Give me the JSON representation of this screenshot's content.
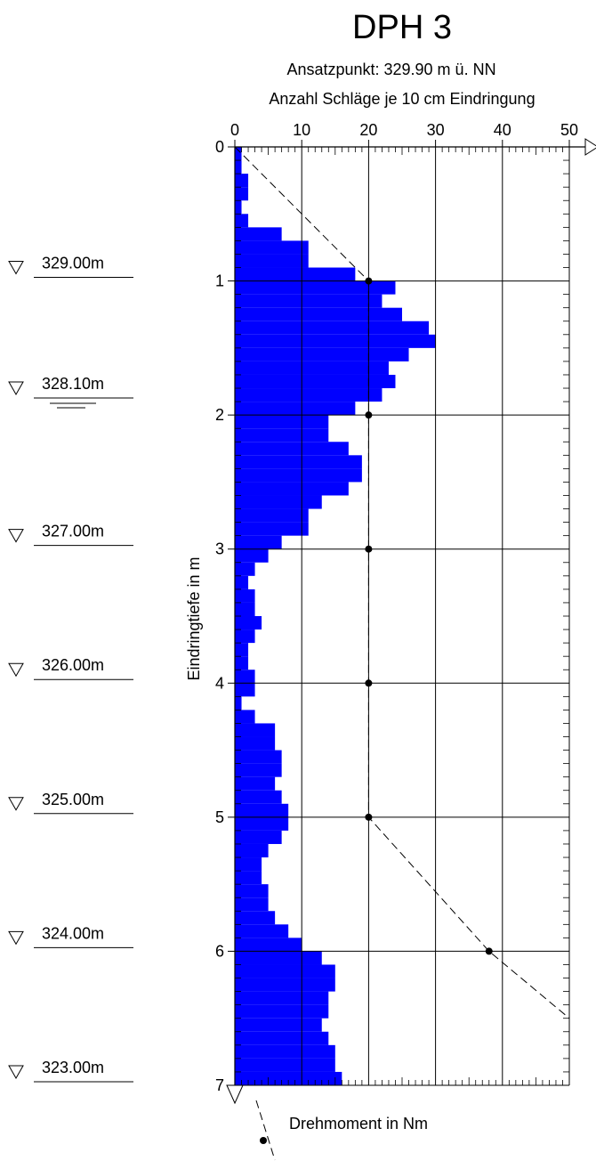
{
  "chart_data": {
    "type": "bar",
    "title": "DPH 3",
    "subtitle": "Ansatzpunkt: 329.90 m ü. NN",
    "xlabel": "Anzahl Schläge je 10 cm Eindringung",
    "ylabel": "Eindringtiefe in m",
    "xlim": [
      0,
      50
    ],
    "ylim": [
      0,
      7
    ],
    "x_ticks": [
      "0",
      "10",
      "20",
      "30",
      "40",
      "50"
    ],
    "y_ticks": [
      "0",
      "1",
      "2",
      "3",
      "4",
      "5",
      "6",
      "7"
    ],
    "grid": true,
    "bar_color": "#0000ff",
    "series": [
      {
        "depth_bottom_m": [
          0.1,
          0.2,
          0.3,
          0.4,
          0.5,
          0.6,
          0.7,
          0.8,
          0.9,
          1.0,
          1.1,
          1.2,
          1.3,
          1.4,
          1.5,
          1.6,
          1.7,
          1.8,
          1.9,
          2.0,
          2.1,
          2.2,
          2.3,
          2.4,
          2.5,
          2.6,
          2.7,
          2.8,
          2.9,
          3.0,
          3.1,
          3.2,
          3.3,
          3.4,
          3.5,
          3.6,
          3.7,
          3.8,
          3.9,
          4.0,
          4.1,
          4.2,
          4.3,
          4.4,
          4.5,
          4.6,
          4.7,
          4.8,
          4.9,
          5.0,
          5.1,
          5.2,
          5.3,
          5.4,
          5.5,
          5.6,
          5.7,
          5.8,
          5.9,
          6.0,
          6.1,
          6.2,
          6.3,
          6.4,
          6.5,
          6.6,
          6.7,
          6.8,
          6.9,
          7.0
        ],
        "blows": [
          1,
          1,
          2,
          2,
          1,
          2,
          7,
          11,
          11,
          18,
          24,
          22,
          25,
          29,
          30,
          26,
          23,
          24,
          22,
          18,
          14,
          14,
          17,
          19,
          19,
          17,
          13,
          11,
          11,
          7,
          5,
          3,
          2,
          3,
          3,
          4,
          3,
          2,
          2,
          3,
          3,
          1,
          3,
          6,
          6,
          7,
          7,
          6,
          7,
          8,
          8,
          7,
          5,
          4,
          4,
          5,
          5,
          6,
          8,
          10,
          13,
          15,
          15,
          14,
          14,
          13,
          14,
          15,
          15,
          16
        ]
      },
      {
        "name": "Drehmoment in Nm",
        "points": [
          [
            0,
            0
          ],
          [
            20,
            1
          ],
          [
            20,
            2
          ],
          [
            20,
            3
          ],
          [
            20,
            4
          ],
          [
            20,
            5
          ],
          [
            38,
            6
          ],
          [
            50,
            6.5
          ]
        ],
        "marked_depths": [
          1,
          2,
          3,
          4,
          5,
          6
        ]
      }
    ],
    "elevation_markers": [
      "329.00m",
      "328.10m",
      "327.00m",
      "326.00m",
      "325.00m",
      "324.00m",
      "323.00m"
    ],
    "elevation_depths_m": [
      0.9,
      1.8,
      2.9,
      3.9,
      4.9,
      5.9,
      6.9
    ],
    "groundwater_level": "328.10m"
  }
}
